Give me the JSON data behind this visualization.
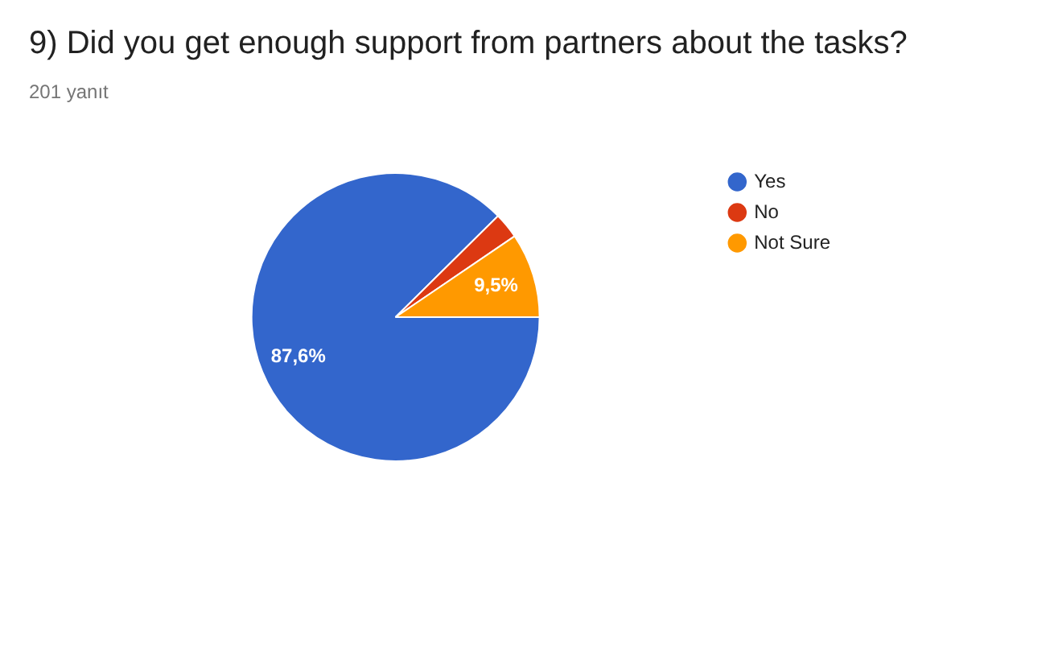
{
  "chart_data": {
    "type": "pie",
    "title": "9) Did you get enough support from partners about the tasks?",
    "subtitle": "201 yanıt",
    "categories": [
      "Yes",
      "No",
      "Not Sure"
    ],
    "values": [
      87.6,
      2.9,
      9.5
    ],
    "colors": [
      "#3366cc",
      "#dc3912",
      "#ff9900"
    ],
    "value_labels": [
      "87,6%",
      null,
      "9,5%"
    ],
    "legend": "top right"
  }
}
